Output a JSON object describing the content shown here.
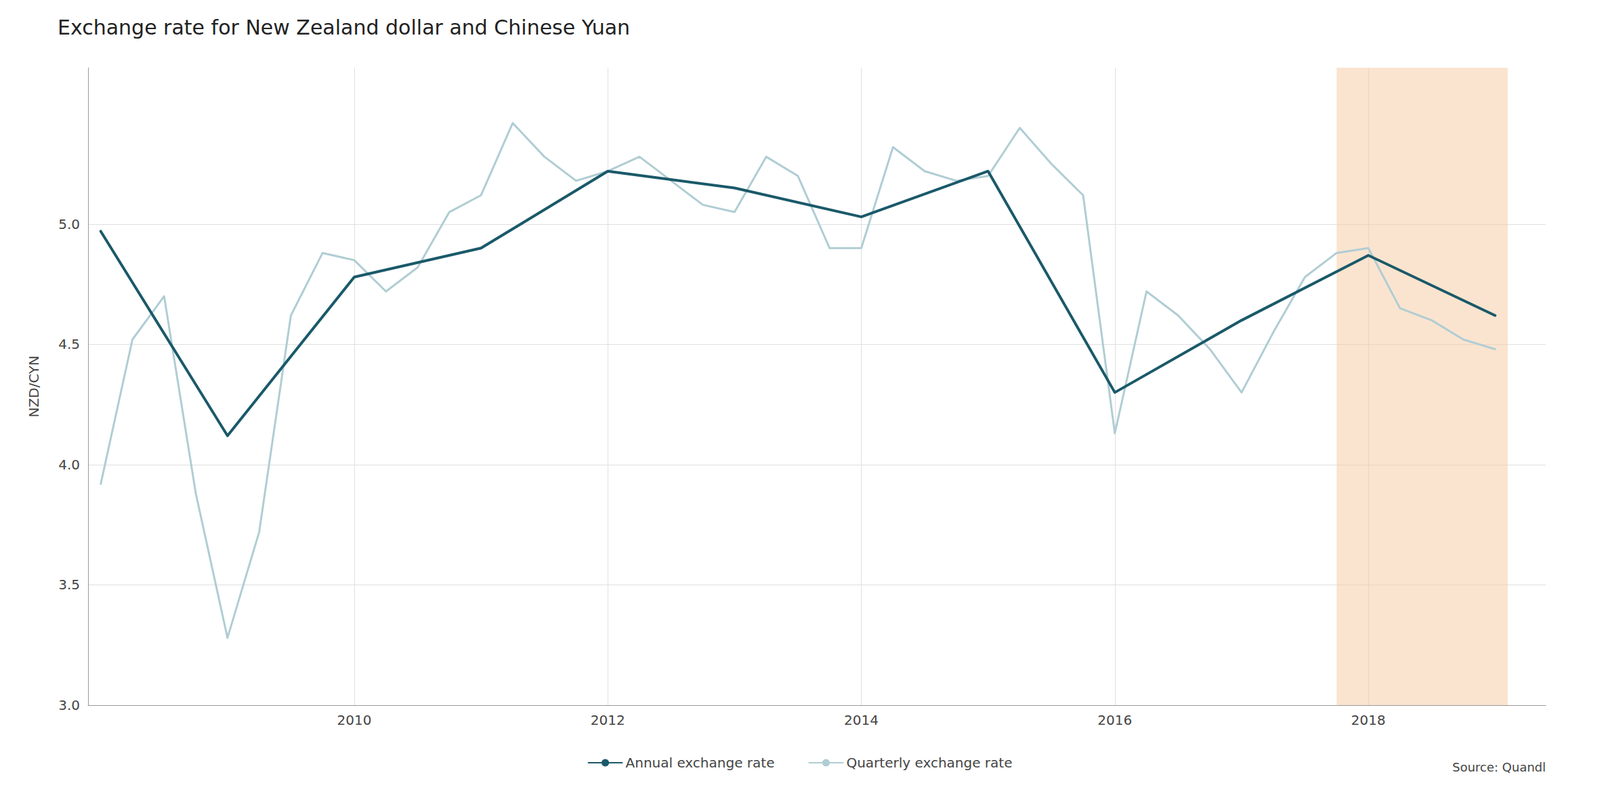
{
  "chart_data": {
    "type": "line",
    "title": "Exchange rate for New Zealand dollar and Chinese Yuan",
    "y_label": "NZD/CYN",
    "annotations": [
      "Source: Quandl"
    ],
    "series": [
      {
        "name": "Annual exchange rate",
        "color": "#1a5969",
        "x": [
          2008,
          2009,
          2010,
          2011,
          2012,
          2013,
          2014,
          2015,
          2016,
          2017,
          2018,
          2019
        ],
        "values": [
          4.97,
          4.12,
          4.78,
          4.9,
          5.22,
          5.15,
          5.03,
          5.22,
          4.3,
          4.6,
          4.87,
          4.62
        ]
      },
      {
        "name": "Quarterly exchange rate",
        "color": "#b0cdd4",
        "x": [
          2008.0,
          2008.25,
          2008.5,
          2008.75,
          2009.0,
          2009.25,
          2009.5,
          2009.75,
          2010.0,
          2010.25,
          2010.5,
          2010.75,
          2011.0,
          2011.25,
          2011.5,
          2011.75,
          2012.0,
          2012.25,
          2012.5,
          2012.75,
          2013.0,
          2013.25,
          2013.5,
          2013.75,
          2014.0,
          2014.25,
          2014.5,
          2014.75,
          2015.0,
          2015.25,
          2015.5,
          2015.75,
          2016.0,
          2016.25,
          2016.5,
          2016.75,
          2017.0,
          2017.25,
          2017.5,
          2017.75,
          2018.0,
          2018.25,
          2018.5,
          2018.75,
          2019.0
        ],
        "values": [
          3.92,
          4.52,
          4.7,
          3.88,
          3.28,
          3.72,
          4.62,
          4.88,
          4.85,
          4.72,
          4.82,
          5.05,
          5.12,
          5.42,
          5.28,
          5.18,
          5.22,
          5.28,
          5.18,
          5.08,
          5.05,
          5.28,
          5.2,
          4.9,
          4.9,
          5.32,
          5.22,
          5.18,
          5.2,
          5.4,
          5.25,
          5.12,
          4.13,
          4.72,
          4.62,
          4.48,
          4.3,
          4.55,
          4.78,
          4.88,
          4.9,
          4.65,
          4.6,
          4.52,
          4.48
        ]
      }
    ],
    "shaded_region": {
      "start": 2017.75,
      "end": 2019.1,
      "color": "#f5c9a0"
    },
    "xlim": [
      2007.9,
      2019.4
    ],
    "xticks": [
      2010,
      2012,
      2014,
      2016,
      2018
    ],
    "ylim": [
      3.0,
      5.65
    ],
    "yticks": [
      {
        "value": 3.0,
        "label": "3.0"
      },
      3.5,
      {
        "value": 4.0,
        "label": "4.0"
      },
      4.5,
      {
        "value": 5.0,
        "label": "5.0"
      }
    ],
    "grid": true,
    "legend": "bottom"
  }
}
